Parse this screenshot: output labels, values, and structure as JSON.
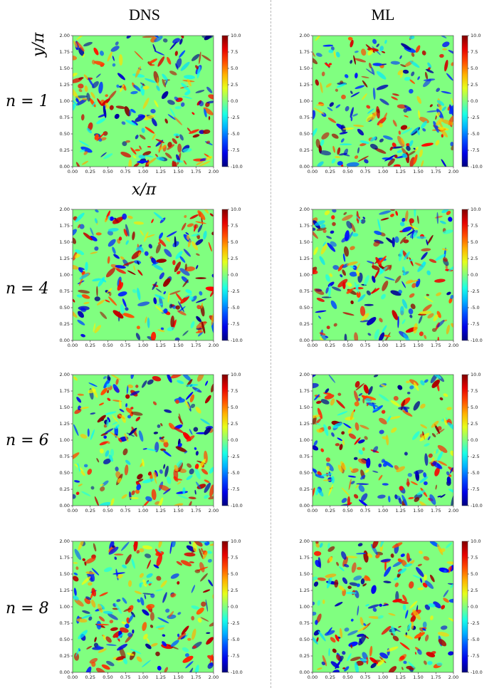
{
  "columns": [
    {
      "title": "DNS"
    },
    {
      "title": "ML"
    }
  ],
  "rows": [
    {
      "label": "n = 1"
    },
    {
      "label": "n = 4"
    },
    {
      "label": "n = 6"
    },
    {
      "label": "n = 8"
    }
  ],
  "axes": {
    "ylabel": "y/π",
    "xlabel": "x/π"
  },
  "chart_data": [
    {
      "type": "heatmap",
      "panel": "DNS n = 1",
      "xlim": [
        0,
        2
      ],
      "ylim": [
        0,
        2
      ],
      "xticks": [
        "0.00",
        "0.25",
        "0.50",
        "0.75",
        "1.00",
        "1.25",
        "1.50",
        "1.75",
        "2.00"
      ],
      "yticks": [
        "0.00",
        "0.25",
        "0.50",
        "0.75",
        "1.00",
        "1.25",
        "1.50",
        "1.75",
        "2.00"
      ],
      "colorbar": {
        "range": [
          -10,
          10
        ],
        "ticks": [
          "10.0",
          "7.5",
          "5.0",
          "2.5",
          "0.0",
          "-2.5",
          "-5.0",
          "-7.5",
          "-10.0"
        ],
        "colormap": "jet"
      }
    },
    {
      "type": "heatmap",
      "panel": "ML n = 1",
      "xlim": [
        0,
        2
      ],
      "ylim": [
        0,
        2
      ],
      "xticks": [
        "0.00",
        "0.25",
        "0.50",
        "0.75",
        "1.00",
        "1.25",
        "1.50",
        "1.75",
        "2.00"
      ],
      "yticks": [
        "0.00",
        "0.25",
        "0.50",
        "0.75",
        "1.00",
        "1.25",
        "1.50",
        "1.75",
        "2.00"
      ],
      "colorbar": {
        "range": [
          -10,
          10
        ],
        "ticks": [
          "10.0",
          "7.5",
          "5.0",
          "2.5",
          "0.0",
          "-2.5",
          "-5.0",
          "-7.5",
          "-10.0"
        ],
        "colormap": "jet"
      }
    },
    {
      "type": "heatmap",
      "panel": "DNS n = 4",
      "xlim": [
        0,
        2
      ],
      "ylim": [
        0,
        2
      ],
      "xticks": [
        "0.00",
        "0.25",
        "0.50",
        "0.75",
        "1.00",
        "1.25",
        "1.50",
        "1.75",
        "2.00"
      ],
      "yticks": [
        "0.00",
        "0.25",
        "0.50",
        "0.75",
        "1.00",
        "1.25",
        "1.50",
        "1.75",
        "2.00"
      ],
      "colorbar": {
        "range": [
          -10,
          10
        ],
        "ticks": [
          "10.0",
          "7.5",
          "5.0",
          "2.5",
          "0.0",
          "-2.5",
          "-5.0",
          "-7.5",
          "-10.0"
        ],
        "colormap": "jet"
      }
    },
    {
      "type": "heatmap",
      "panel": "ML n = 4",
      "xlim": [
        0,
        2
      ],
      "ylim": [
        0,
        2
      ],
      "xticks": [
        "0.00",
        "0.25",
        "0.50",
        "0.75",
        "1.00",
        "1.25",
        "1.50",
        "1.75",
        "2.00"
      ],
      "yticks": [
        "0.00",
        "0.25",
        "0.50",
        "0.75",
        "1.00",
        "1.25",
        "1.50",
        "1.75",
        "2.00"
      ],
      "colorbar": {
        "range": [
          -10,
          10
        ],
        "ticks": [
          "10.0",
          "7.5",
          "5.0",
          "2.5",
          "0.0",
          "-2.5",
          "-5.0",
          "-7.5",
          "-10.0"
        ],
        "colormap": "jet"
      }
    },
    {
      "type": "heatmap",
      "panel": "DNS n = 6",
      "xlim": [
        0,
        2
      ],
      "ylim": [
        0,
        2
      ],
      "xticks": [
        "0.00",
        "0.25",
        "0.50",
        "0.75",
        "1.00",
        "1.25",
        "1.50",
        "1.75",
        "2.00"
      ],
      "yticks": [
        "0.00",
        "0.25",
        "0.50",
        "0.75",
        "1.00",
        "1.25",
        "1.50",
        "1.75",
        "2.00"
      ],
      "colorbar": {
        "range": [
          -10,
          10
        ],
        "ticks": [
          "10.0",
          "7.5",
          "5.0",
          "2.5",
          "0.0",
          "-2.5",
          "-5.0",
          "-7.5",
          "-10.0"
        ],
        "colormap": "jet"
      }
    },
    {
      "type": "heatmap",
      "panel": "ML n = 6",
      "xlim": [
        0,
        2
      ],
      "ylim": [
        0,
        2
      ],
      "xticks": [
        "0.00",
        "0.25",
        "0.50",
        "0.75",
        "1.00",
        "1.25",
        "1.50",
        "1.75",
        "2.00"
      ],
      "yticks": [
        "0.00",
        "0.25",
        "0.50",
        "0.75",
        "1.00",
        "1.25",
        "1.50",
        "1.75",
        "2.00"
      ],
      "colorbar": {
        "range": [
          -10,
          10
        ],
        "ticks": [
          "10.0",
          "7.5",
          "5.0",
          "2.5",
          "0.0",
          "-2.5",
          "-5.0",
          "-7.5",
          "-10.0"
        ],
        "colormap": "jet"
      }
    },
    {
      "type": "heatmap",
      "panel": "DNS n = 8",
      "xlim": [
        0,
        2
      ],
      "ylim": [
        0,
        2
      ],
      "xticks": [
        "0.00",
        "0.25",
        "0.50",
        "0.75",
        "1.00",
        "1.25",
        "1.50",
        "1.75",
        "2.00"
      ],
      "yticks": [
        "0.00",
        "0.25",
        "0.50",
        "0.75",
        "1.00",
        "1.25",
        "1.50",
        "1.75",
        "2.00"
      ],
      "colorbar": {
        "range": [
          -10,
          10
        ],
        "ticks": [
          "10.0",
          "7.5",
          "5.0",
          "2.5",
          "0.0",
          "-2.5",
          "-5.0",
          "-7.5",
          "-10.0"
        ],
        "colormap": "jet"
      }
    },
    {
      "type": "heatmap",
      "panel": "ML n = 8",
      "xlim": [
        0,
        2
      ],
      "ylim": [
        0,
        2
      ],
      "xticks": [
        "0.00",
        "0.25",
        "0.50",
        "0.75",
        "1.00",
        "1.25",
        "1.50",
        "1.75",
        "2.00"
      ],
      "yticks": [
        "0.00",
        "0.25",
        "0.50",
        "0.75",
        "1.00",
        "1.25",
        "1.50",
        "1.75",
        "2.00"
      ],
      "colorbar": {
        "range": [
          -10,
          10
        ],
        "ticks": [
          "10.0",
          "7.5",
          "5.0",
          "2.5",
          "0.0",
          "-2.5",
          "-5.0",
          "-7.5",
          "-10.0"
        ],
        "colormap": "jet"
      }
    }
  ]
}
